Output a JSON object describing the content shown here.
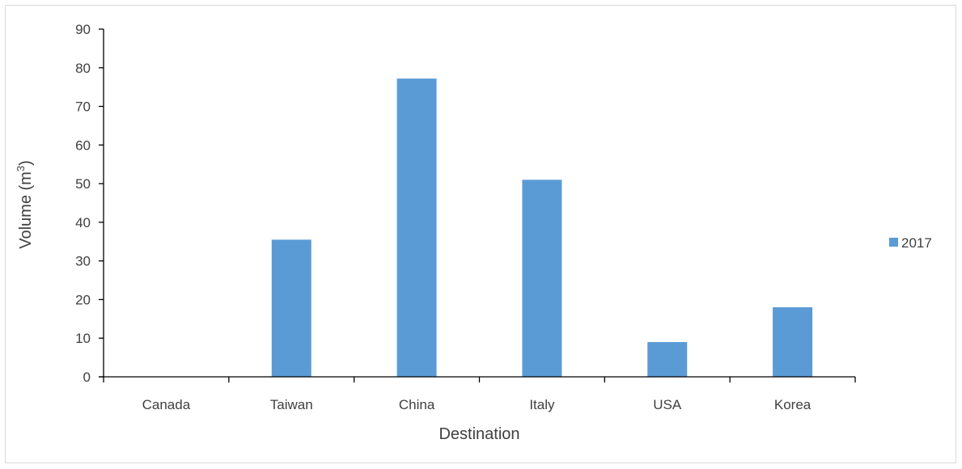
{
  "chart_data": {
    "type": "bar",
    "title": "",
    "xlabel": "Destination",
    "ylabel_main": "Volume (m",
    "ylabel_sup": "3",
    "ylabel_end": ")",
    "categories": [
      "Canada",
      "Taiwan",
      "China",
      "Italy",
      "USA",
      "Korea"
    ],
    "series": [
      {
        "name": "2017",
        "color": "#5b9bd5",
        "values": [
          0,
          35.5,
          77.2,
          51,
          9,
          18
        ]
      }
    ],
    "ylim": [
      0,
      90
    ],
    "yticks": [
      "0",
      "10",
      "20",
      "30",
      "40",
      "50",
      "60",
      "70",
      "80",
      "90"
    ],
    "grid": false,
    "legend_position": "right"
  }
}
